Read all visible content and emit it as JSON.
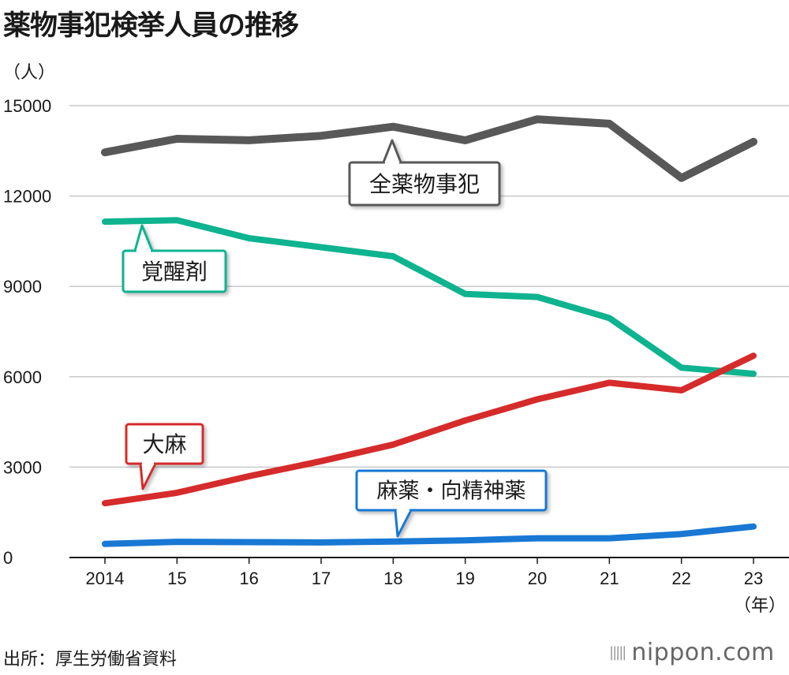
{
  "title": "薬物事犯検挙人員の推移",
  "unit_label": "（人）",
  "year_unit_label": "（年）",
  "source": "出所：厚生労働省資料",
  "brand": {
    "bars_glyph": "|||||",
    "name": "nippon.com"
  },
  "chart_data": {
    "type": "line",
    "title": "薬物事犯検挙人員の推移",
    "ylabel": "（人）",
    "xlabel": "（年）",
    "x": [
      2014,
      2015,
      2016,
      2017,
      2018,
      2019,
      2020,
      2021,
      2022,
      2023
    ],
    "x_tick_labels": [
      "2014",
      "15",
      "16",
      "17",
      "18",
      "19",
      "20",
      "21",
      "22",
      "23"
    ],
    "ylim": [
      0,
      15000
    ],
    "y_ticks": [
      0,
      3000,
      6000,
      9000,
      12000,
      15000
    ],
    "grid": true,
    "series": [
      {
        "name": "全薬物事犯",
        "color": "#585858",
        "label_color": "#585858",
        "values": [
          13450,
          13900,
          13850,
          14000,
          14300,
          13850,
          14550,
          14400,
          12600,
          13800
        ]
      },
      {
        "name": "覚醒剤",
        "color": "#0eb38f",
        "label_color": "#0eb38f",
        "values": [
          11150,
          11200,
          10600,
          10300,
          10000,
          8750,
          8650,
          7950,
          6300,
          6100
        ]
      },
      {
        "name": "大麻",
        "color": "#d62b2b",
        "label_color": "#d62b2b",
        "values": [
          1800,
          2150,
          2700,
          3200,
          3750,
          4550,
          5250,
          5800,
          5550,
          6700
        ]
      },
      {
        "name": "麻薬・向精神薬",
        "color": "#1878d4",
        "label_color": "#1878d4",
        "values": [
          450,
          520,
          510,
          500,
          530,
          570,
          640,
          640,
          780,
          1030
        ]
      }
    ]
  }
}
